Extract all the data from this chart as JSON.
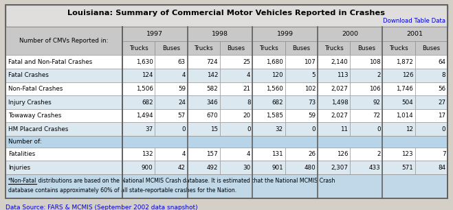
{
  "title": "Louisiana: Summary of Commercial Motor Vehicles Reported in Crashes",
  "download_link": "Download Table Data",
  "years": [
    "1997",
    "1998",
    "1999",
    "2000",
    "2001"
  ],
  "col_labels": [
    "Trucks",
    "Buses"
  ],
  "row_label_col": "Number of CMVs Reported in:",
  "section1_rows": [
    [
      "Fatal and Non-Fatal Crashes",
      "1,630",
      "63",
      "724",
      "25",
      "1,680",
      "107",
      "2,140",
      "108",
      "1,872",
      "64"
    ],
    [
      "Fatal Crashes",
      "124",
      "4",
      "142",
      "4",
      "120",
      "5",
      "113",
      "2",
      "126",
      "8"
    ],
    [
      "Non-Fatal Crashes",
      "1,506",
      "59",
      "582",
      "21",
      "1,560",
      "102",
      "2,027",
      "106",
      "1,746",
      "56"
    ],
    [
      "Injury Crashes",
      "682",
      "24",
      "346",
      "8",
      "682",
      "73",
      "1,498",
      "92",
      "504",
      "27"
    ],
    [
      "Towaway Crashes",
      "1,494",
      "57",
      "670",
      "20",
      "1,585",
      "59",
      "2,027",
      "72",
      "1,014",
      "17"
    ],
    [
      "HM Placard Crashes",
      "37",
      "0",
      "15",
      "0",
      "32",
      "0",
      "11",
      "0",
      "12",
      "0"
    ]
  ],
  "section2_header": "Number of:",
  "section2_rows": [
    [
      "Fatalities",
      "132",
      "4",
      "157",
      "4",
      "131",
      "26",
      "126",
      "2",
      "123",
      "7"
    ],
    [
      "Injuries",
      "900",
      "42",
      "492",
      "30",
      "901",
      "480",
      "2,307",
      "433",
      "571",
      "84"
    ]
  ],
  "footnote_line1_prefix": "*Non-Fatal",
  "footnote_line1_rest": " distributions are based on the National MCMIS Crash database. It is estimated that the National MCMIS Crash",
  "footnote_line2": "database contains approximately 60% of all state-reportable crashes for the Nation.",
  "data_source": "Data Source: FARS & MCMIS (September 2002 data snapshot)",
  "bg_color": "#d4d0c8",
  "header_bg": "#c8c8c8",
  "section_header_bg": "#b8d4e8",
  "row_white_bg": "#ffffff",
  "row_blue_bg": "#dce8f0",
  "footnote_bg": "#c0d8e8",
  "title_bg": "#e0dedd",
  "link_color": "#0000cc"
}
